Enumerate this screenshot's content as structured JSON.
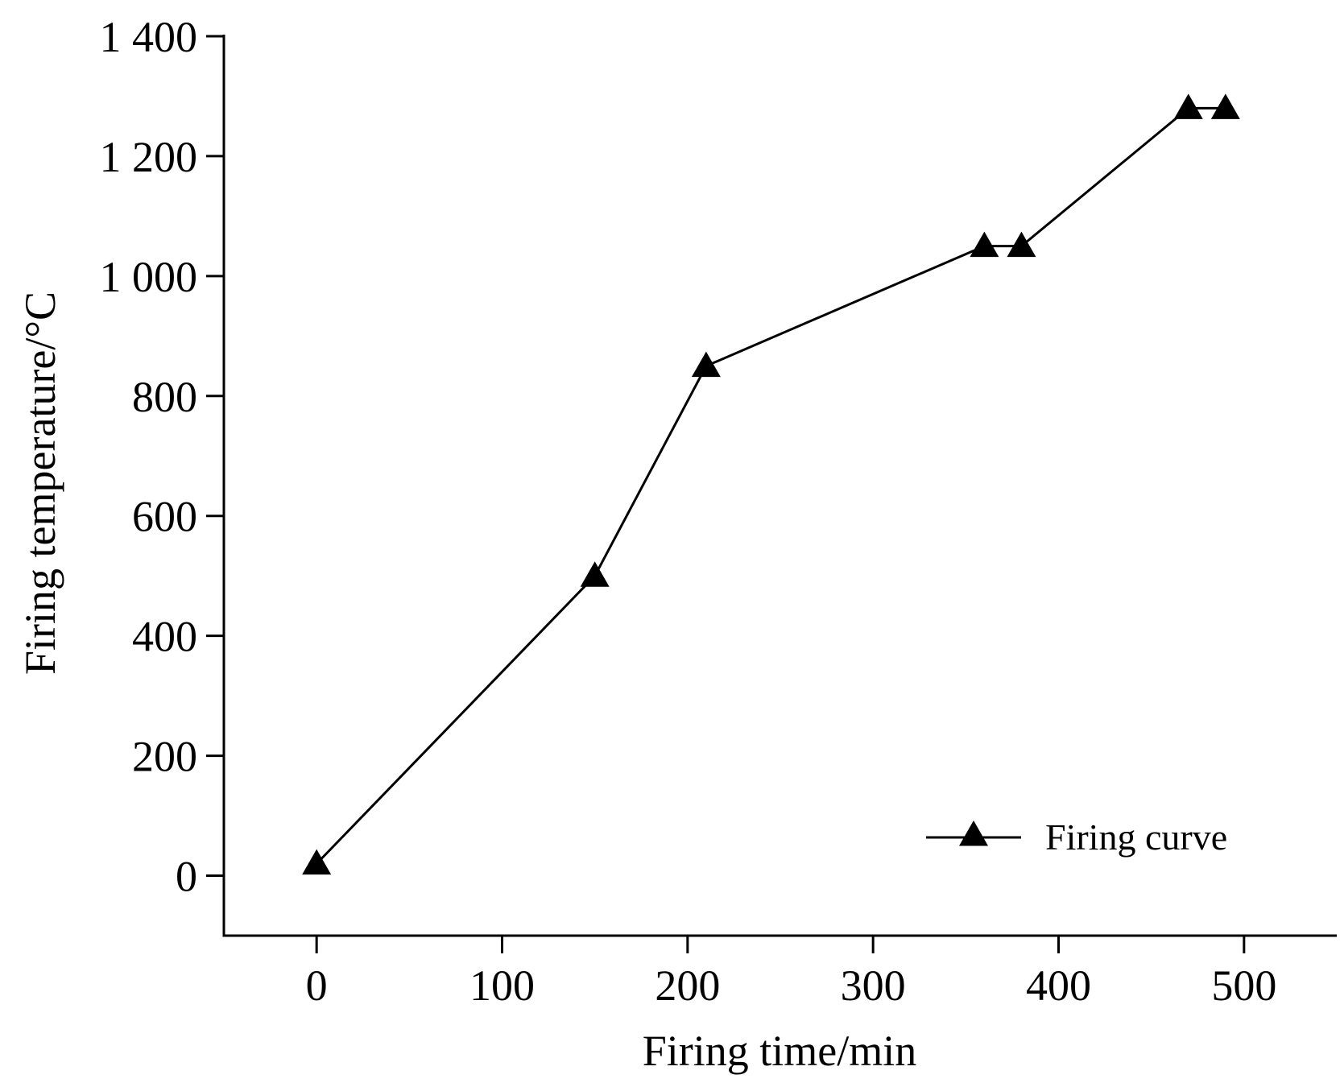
{
  "chart_data": {
    "type": "line",
    "xlabel": "Firing time/min",
    "ylabel": "Firing temperature/°C",
    "xlim": [
      -50,
      550
    ],
    "ylim": [
      -100,
      1400
    ],
    "xticks": [
      0,
      100,
      200,
      300,
      400,
      500
    ],
    "xtick_labels": [
      "0",
      "100",
      "200",
      "300",
      "400",
      "500"
    ],
    "yticks": [
      0,
      200,
      400,
      600,
      800,
      1000,
      1200,
      1400
    ],
    "ytick_labels": [
      "0",
      "200",
      "400",
      "600",
      "800",
      "1 000",
      "1 200",
      "1 400"
    ],
    "grid": false,
    "legend_position": "bottom-right",
    "series": [
      {
        "name": "Firing curve",
        "marker": "triangle",
        "color": "#000000",
        "x": [
          0,
          150,
          210,
          360,
          380,
          470,
          490
        ],
        "y": [
          20,
          500,
          850,
          1050,
          1050,
          1280,
          1280
        ]
      }
    ]
  }
}
